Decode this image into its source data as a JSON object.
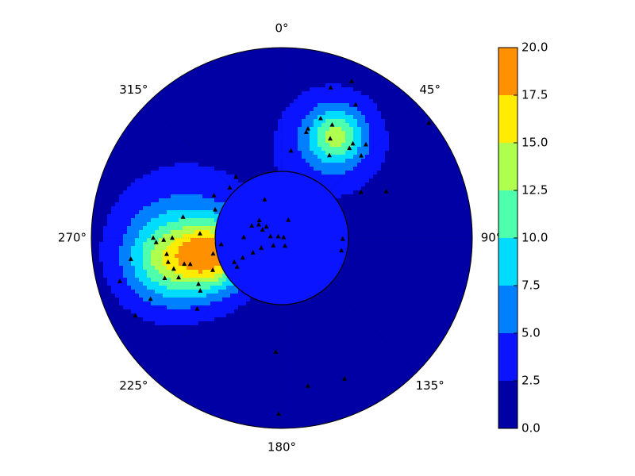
{
  "chart_data": {
    "type": "polar_contour",
    "theta_ticks": [
      {
        "value": 0,
        "label": "0°"
      },
      {
        "value": 45,
        "label": "45°"
      },
      {
        "value": 90,
        "label": "90°"
      },
      {
        "value": 135,
        "label": "135°"
      },
      {
        "value": 180,
        "label": "180°"
      },
      {
        "value": 225,
        "label": "225°"
      },
      {
        "value": 270,
        "label": "270°"
      },
      {
        "value": 315,
        "label": "315°"
      }
    ],
    "rlim": [
      0,
      1
    ],
    "grid": true,
    "colorbar": {
      "lim": [
        0,
        20
      ],
      "ticks": [
        {
          "value": 0,
          "label": "0.0"
        },
        2.5,
        {
          "value": 5,
          "label": "5.0"
        },
        7.5,
        {
          "value": 10,
          "label": "10.0"
        },
        12.5,
        {
          "value": 15,
          "label": "15.0"
        },
        17.5,
        {
          "value": 20,
          "label": "20.0"
        }
      ],
      "colors": [
        "#0000a4",
        "#0a14ff",
        "#0080ff",
        "#00dcff",
        "#4effae",
        "#aeff4e",
        "#ffec00",
        "#ff9000"
      ]
    },
    "field": {
      "base": 1,
      "sources": [
        {
          "theta": 256,
          "r": 0.37,
          "amplitude": 13,
          "width": 0.12
        },
        {
          "theta": 259,
          "r": 0.61,
          "amplitude": 9,
          "width": 0.15
        },
        {
          "theta": 270,
          "r": 0.5,
          "amplitude": 5,
          "width": 0.25
        },
        {
          "theta": 28,
          "r": 0.61,
          "amplitude": 9,
          "width": 0.1
        },
        {
          "theta": 27,
          "r": 0.56,
          "amplitude": 4,
          "width": 0.2
        }
      ],
      "inner_disk": {
        "r": 0.35,
        "value": 3
      }
    },
    "points": {
      "color": "#000000",
      "theta": [
        24,
        18,
        52,
        29,
        18,
        24,
        13.5,
        13,
        26,
        37,
        42,
        37,
        30,
        44,
        6,
        66,
        60,
        323,
        314,
        302,
        293,
        282,
        273,
        270,
        268,
        269,
        270,
        262,
        262,
        258,
        254,
        255,
        254,
        251,
        249,
        255,
        245,
        241,
        237,
        230,
        242,
        257,
        245,
        264,
        336,
        20,
        308,
        292,
        293,
        271,
        278,
        72,
        292,
        228,
        158,
        244,
        243,
        243,
        243,
        237,
        91,
        102,
        300,
        306,
        183,
        156,
        170,
        181
      ],
      "r": [
        0.9,
        0.83,
        0.98,
        0.8,
        0.66,
        0.65,
        0.59,
        0.57,
        0.58,
        0.62,
        0.66,
        0.59,
        0.5,
        0.6,
        0.46,
        0.6,
        0.48,
        0.4,
        0.38,
        0.42,
        0.38,
        0.53,
        0.43,
        0.675,
        0.66,
        0.62,
        0.575,
        0.8,
        0.61,
        0.61,
        0.59,
        0.53,
        0.5,
        0.65,
        0.58,
        0.88,
        0.76,
        0.5,
        0.51,
        0.58,
        0.87,
        0.37,
        0.4,
        0.32,
        0.22,
        0.1,
        0.15,
        0.17,
        0.11,
        0.2,
        0.06,
        0.01,
        0.02,
        0.06,
        0.045,
        0.12,
        0.17,
        0.23,
        0.28,
        0.28,
        0.32,
        0.32,
        0.14,
        0.1,
        0.6,
        0.81,
        0.79,
        0.925
      ]
    }
  }
}
